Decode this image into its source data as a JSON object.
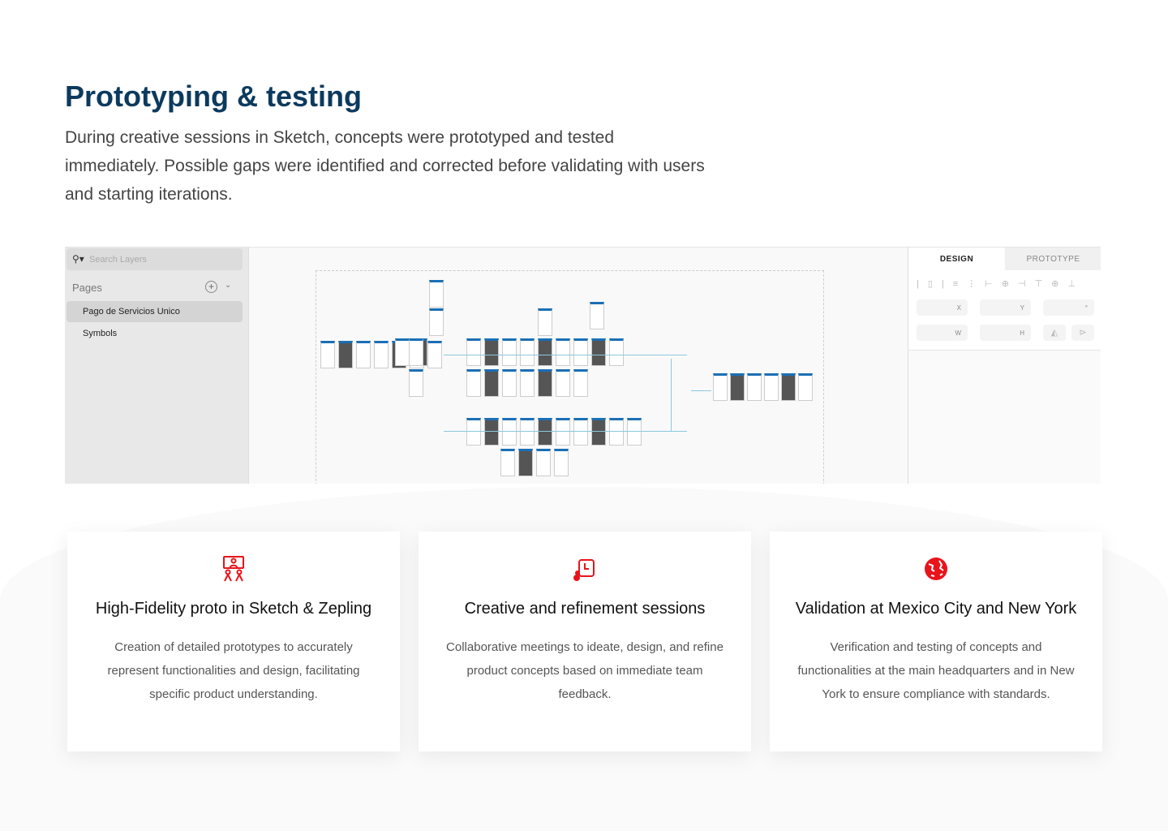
{
  "header": {
    "title": "Prototyping & testing",
    "intro": "During creative sessions in Sketch, concepts were prototyped and tested immediately. Possible gaps were identified and corrected before validating with users and starting iterations."
  },
  "sketch": {
    "search_placeholder": "Search Layers",
    "pages_label": "Pages",
    "pages": [
      {
        "label": "Pago de Servicios Unico",
        "selected": true
      },
      {
        "label": "Symbols",
        "selected": false
      }
    ],
    "inspector": {
      "tabs": [
        "DESIGN",
        "PROTOTYPE"
      ],
      "active_tab": "DESIGN",
      "fields": [
        "X",
        "Y",
        "°",
        "W",
        "H"
      ]
    }
  },
  "cards": [
    {
      "icon": "video-meeting-icon",
      "title": "High-Fidelity proto in Sketch & Zepling",
      "body": "Creation of detailed prototypes to accurately represent functionalities and design, facilitating specific product understanding."
    },
    {
      "icon": "session-presentation-icon",
      "title": "Creative and refinement sessions",
      "body": "Collaborative meetings to ideate, design, and refine product concepts based on immediate team feedback."
    },
    {
      "icon": "globe-icon",
      "title": "Validation at Mexico City and New York",
      "body": "Verification and testing of concepts and functionalities at the main headquarters and in New York to ensure compliance with standards."
    }
  ],
  "colors": {
    "title": "#0c3a5e",
    "accent": "#e8141b"
  }
}
